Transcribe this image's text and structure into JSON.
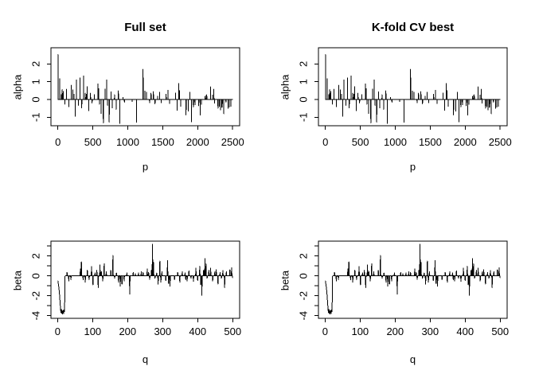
{
  "figure": {
    "background": "#ffffff",
    "line_color": "#000000",
    "text_color": "#000000",
    "column_titles": [
      "Full set",
      "K-fold CV best"
    ]
  },
  "chart_data": [
    {
      "type": "line",
      "title": "Full set",
      "xlabel": "p",
      "ylabel": "alpha",
      "xlim": [
        0,
        2500
      ],
      "ylim": [
        -1.4,
        2.6
      ],
      "grid": false,
      "legend": "none",
      "xticks": [
        0,
        500,
        1000,
        1500,
        2000,
        2500
      ],
      "yticks": [
        -1,
        0,
        1,
        2
      ],
      "ytick_labels": [
        "-1",
        "0",
        "1",
        "2"
      ],
      "baseline": 0,
      "points_note": "sparse nonzero coefficients; all other x in 1..2500 are 0",
      "points": [
        [
          1,
          2.53
        ],
        [
          26,
          1.18
        ],
        [
          50,
          0.28
        ],
        [
          63,
          0.55
        ],
        [
          78,
          0.45
        ],
        [
          99,
          -0.26
        ],
        [
          125,
          0.58
        ],
        [
          159,
          -0.41
        ],
        [
          190,
          0.8
        ],
        [
          216,
          0.55
        ],
        [
          231,
          0.3
        ],
        [
          247,
          -0.94
        ],
        [
          265,
          1.1
        ],
        [
          293,
          -0.33
        ],
        [
          315,
          1.21
        ],
        [
          342,
          -0.48
        ],
        [
          368,
          1.33
        ],
        [
          393,
          0.35
        ],
        [
          406,
          0.3
        ],
        [
          420,
          0.73
        ],
        [
          441,
          -0.64
        ],
        [
          467,
          0.35
        ],
        [
          490,
          -0.2
        ],
        [
          522,
          0.28
        ],
        [
          575,
          0.88
        ],
        [
          583,
          0.6
        ],
        [
          594,
          -0.26
        ],
        [
          617,
          -0.79
        ],
        [
          650,
          -1.32
        ],
        [
          676,
          0.58
        ],
        [
          697,
          1.11
        ],
        [
          711,
          -0.33
        ],
        [
          735,
          -1.28
        ],
        [
          760,
          0.42
        ],
        [
          779,
          -0.48
        ],
        [
          810,
          0.27
        ],
        [
          833,
          -0.56
        ],
        [
          866,
          0.5
        ],
        [
          885,
          -1.35
        ],
        [
          930,
          0.12
        ],
        [
          952,
          -0.15
        ],
        [
          1063,
          -0.12
        ],
        [
          1125,
          -1.28
        ],
        [
          1219,
          1.7
        ],
        [
          1245,
          0.48
        ],
        [
          1268,
          0.4
        ],
        [
          1311,
          -0.19
        ],
        [
          1333,
          0.36
        ],
        [
          1367,
          0.45
        ],
        [
          1390,
          -0.24
        ],
        [
          1427,
          0.18
        ],
        [
          1454,
          0.4
        ],
        [
          1477,
          -0.19
        ],
        [
          1549,
          0.3
        ],
        [
          1576,
          0.51
        ],
        [
          1598,
          -0.22
        ],
        [
          1682,
          0.37
        ],
        [
          1705,
          -0.6
        ],
        [
          1731,
          0.9
        ],
        [
          1741,
          0.5
        ],
        [
          1758,
          -0.39
        ],
        [
          1834,
          -0.88
        ],
        [
          1864,
          -0.65
        ],
        [
          1888,
          0.41
        ],
        [
          1910,
          -1.26
        ],
        [
          1937,
          -0.42
        ],
        [
          1960,
          -0.3
        ],
        [
          2016,
          -0.35
        ],
        [
          2035,
          -0.88
        ],
        [
          2055,
          -0.27
        ],
        [
          2107,
          0.18
        ],
        [
          2122,
          0.22
        ],
        [
          2130,
          0.26
        ],
        [
          2185,
          0.71
        ],
        [
          2213,
          0.26
        ],
        [
          2232,
          0.58
        ],
        [
          2243,
          -0.2
        ],
        [
          2290,
          -0.5
        ],
        [
          2308,
          -0.39
        ],
        [
          2328,
          -0.58
        ],
        [
          2346,
          -0.45
        ],
        [
          2352,
          -0.42
        ],
        [
          2374,
          -0.8
        ],
        [
          2404,
          -0.15
        ],
        [
          2435,
          -0.5
        ],
        [
          2452,
          -0.42
        ],
        [
          2476,
          -0.39
        ]
      ]
    },
    {
      "type": "line",
      "title": "K-fold CV best",
      "xlabel": "p",
      "ylabel": "alpha",
      "xlim": [
        0,
        2500
      ],
      "ylim": [
        -1.4,
        2.6
      ],
      "grid": false,
      "legend": "none",
      "xticks": [
        0,
        500,
        1000,
        1500,
        2000,
        2500
      ],
      "yticks": [
        -1,
        0,
        1,
        2
      ],
      "ytick_labels": [
        "-1",
        "0",
        "1",
        "2"
      ],
      "baseline": 0,
      "points_same_as": 0
    },
    {
      "type": "line",
      "title": "",
      "xlabel": "q",
      "ylabel": "beta",
      "xlim": [
        0,
        500
      ],
      "ylim": [
        -4,
        3.2
      ],
      "grid": false,
      "legend": "none",
      "xticks": [
        0,
        100,
        200,
        300,
        400,
        500
      ],
      "yticks": [
        -4,
        -3,
        -2,
        -1,
        0,
        1,
        2,
        3
      ],
      "ytick_labels": [
        "-4",
        "",
        "-2",
        "",
        "0",
        "",
        "2",
        ""
      ],
      "baseline": 0,
      "points_note": "sparse nonzero coefficients; all other x in 1..500 are 0",
      "points": [
        [
          1,
          -0.5
        ],
        [
          2,
          -0.75
        ],
        [
          3,
          -1.0
        ],
        [
          4,
          -1.3
        ],
        [
          5,
          -1.6
        ],
        [
          6,
          -2.1
        ],
        [
          7,
          -2.6
        ],
        [
          8,
          -3.1
        ],
        [
          9,
          -3.55
        ],
        [
          10,
          -3.7
        ],
        [
          11,
          -3.35
        ],
        [
          12,
          -3.75
        ],
        [
          13,
          -3.5
        ],
        [
          14,
          -3.85
        ],
        [
          15,
          -3.6
        ],
        [
          16,
          -3.45
        ],
        [
          17,
          -3.8
        ],
        [
          18,
          -3.55
        ],
        [
          19,
          -3.4
        ],
        [
          20,
          -3.6
        ],
        [
          21,
          -0.05
        ],
        [
          27,
          0.35
        ],
        [
          32,
          -0.5
        ],
        [
          38,
          -0.37
        ],
        [
          65,
          0.7
        ],
        [
          68,
          1.4
        ],
        [
          73,
          -0.4
        ],
        [
          79,
          -0.64
        ],
        [
          85,
          0.56
        ],
        [
          90,
          -0.37
        ],
        [
          97,
          0.96
        ],
        [
          101,
          -0.91
        ],
        [
          107,
          0.3
        ],
        [
          112,
          0.56
        ],
        [
          116,
          -1.17
        ],
        [
          121,
          1.09
        ],
        [
          125,
          0.43
        ],
        [
          129,
          -0.51
        ],
        [
          133,
          1.23
        ],
        [
          139,
          0.43
        ],
        [
          152,
          0.56
        ],
        [
          158,
          2.05
        ],
        [
          163,
          -0.24
        ],
        [
          168,
          0.29
        ],
        [
          174,
          -0.64
        ],
        [
          179,
          -1.04
        ],
        [
          184,
          -0.83
        ],
        [
          190,
          -0.51
        ],
        [
          198,
          0.3
        ],
        [
          206,
          -1.85
        ],
        [
          216,
          0.35
        ],
        [
          222,
          0.24
        ],
        [
          231,
          0.3
        ],
        [
          239,
          0.43
        ],
        [
          244,
          0.35
        ],
        [
          256,
          0.69
        ],
        [
          260,
          0.35
        ],
        [
          263,
          -0.37
        ],
        [
          268,
          0.56
        ],
        [
          271,
          3.2
        ],
        [
          274,
          1.36
        ],
        [
          278,
          -0.24
        ],
        [
          283,
          0.29
        ],
        [
          287,
          -0.83
        ],
        [
          292,
          1.49
        ],
        [
          295,
          -0.64
        ],
        [
          298,
          0.43
        ],
        [
          309,
          -0.45
        ],
        [
          314,
          1.55
        ],
        [
          317,
          -0.77
        ],
        [
          321,
          -1.04
        ],
        [
          334,
          -0.37
        ],
        [
          343,
          0.35
        ],
        [
          349,
          -0.64
        ],
        [
          356,
          0.43
        ],
        [
          364,
          0.3
        ],
        [
          366,
          -0.37
        ],
        [
          370,
          -0.51
        ],
        [
          375,
          0.51
        ],
        [
          381,
          -0.24
        ],
        [
          388,
          -0.56
        ],
        [
          395,
          0.77
        ],
        [
          400,
          -0.45
        ],
        [
          406,
          0.96
        ],
        [
          409,
          -0.91
        ],
        [
          412,
          -1.97
        ],
        [
          417,
          0.56
        ],
        [
          421,
          1.76
        ],
        [
          424,
          1.2
        ],
        [
          427,
          -0.24
        ],
        [
          432,
          0.56
        ],
        [
          437,
          0.77
        ],
        [
          443,
          -0.51
        ],
        [
          449,
          0.43
        ],
        [
          453,
          0.61
        ],
        [
          458,
          -0.83
        ],
        [
          464,
          0.35
        ],
        [
          468,
          -0.24
        ],
        [
          472,
          0.56
        ],
        [
          477,
          -1.17
        ],
        [
          482,
          0.43
        ],
        [
          492,
          0.61
        ],
        [
          497,
          0.83
        ],
        [
          500,
          -0.19
        ]
      ]
    },
    {
      "type": "line",
      "title": "",
      "xlabel": "q",
      "ylabel": "beta",
      "xlim": [
        0,
        500
      ],
      "ylim": [
        -4,
        3.2
      ],
      "grid": false,
      "legend": "none",
      "xticks": [
        0,
        100,
        200,
        300,
        400,
        500
      ],
      "yticks": [
        -4,
        -3,
        -2,
        -1,
        0,
        1,
        2,
        3
      ],
      "ytick_labels": [
        "-4",
        "",
        "-2",
        "",
        "0",
        "",
        "2",
        ""
      ],
      "baseline": 0,
      "points_same_as": 2
    }
  ]
}
